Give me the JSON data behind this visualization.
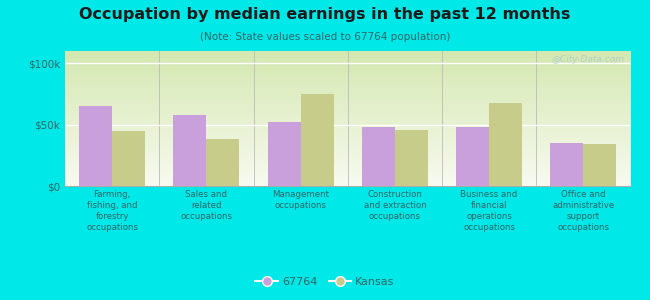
{
  "title": "Occupation by median earnings in the past 12 months",
  "subtitle": "(Note: State values scaled to 67764 population)",
  "categories": [
    "Farming,\nfishing, and\nforestry\noccupations",
    "Sales and\nrelated\noccupations",
    "Management\noccupations",
    "Construction\nand extraction\noccupations",
    "Business and\nfinancial\noperations\noccupations",
    "Office and\nadministrative\nsupport\noccupations"
  ],
  "values_city": [
    65000,
    58000,
    52000,
    48000,
    48000,
    35000
  ],
  "values_state": [
    45000,
    38000,
    75000,
    46000,
    68000,
    34000
  ],
  "legend_city": "67764",
  "legend_state": "Kansas",
  "color_city": "#c9a0dc",
  "color_state": "#c8cc8a",
  "background_outer": "#00e8e8",
  "ylim": [
    0,
    110000
  ],
  "yticks": [
    0,
    50000,
    100000
  ],
  "ytick_labels": [
    "$0",
    "$50k",
    "$100k"
  ],
  "watermark": "@City-Data.com",
  "bar_width": 0.35,
  "title_color": "#1a1a1a",
  "subtitle_color": "#336666",
  "tick_label_color": "#336666"
}
